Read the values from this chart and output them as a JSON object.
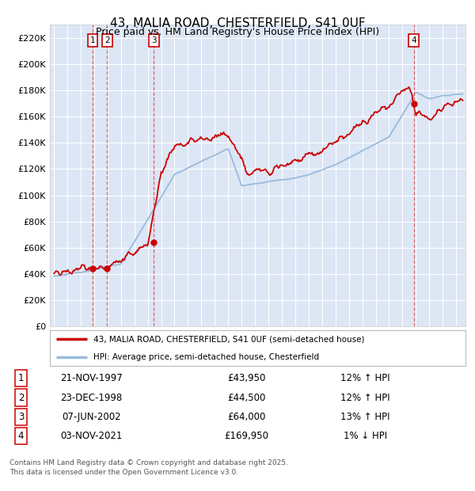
{
  "title": "43, MALIA ROAD, CHESTERFIELD, S41 0UF",
  "subtitle": "Price paid vs. HM Land Registry's House Price Index (HPI)",
  "ylim": [
    0,
    230000
  ],
  "yticks": [
    0,
    20000,
    40000,
    60000,
    80000,
    100000,
    120000,
    140000,
    160000,
    180000,
    200000,
    220000
  ],
  "ytick_labels": [
    "£0",
    "£20K",
    "£40K",
    "£60K",
    "£80K",
    "£100K",
    "£120K",
    "£140K",
    "£160K",
    "£180K",
    "£200K",
    "£220K"
  ],
  "xlim_start": 1994.7,
  "xlim_end": 2025.7,
  "bg_color": "#ffffff",
  "plot_bg_color": "#dce6f5",
  "grid_color": "#ffffff",
  "red_color": "#cc0000",
  "blue_color": "#99bbdd",
  "transactions": [
    {
      "num": 1,
      "year": 1997.89,
      "price": 43950,
      "date": "21-NOV-1997",
      "hpi_pct": "12%",
      "direction": "↑"
    },
    {
      "num": 2,
      "year": 1998.98,
      "price": 44500,
      "date": "23-DEC-1998",
      "hpi_pct": "12%",
      "direction": "↑"
    },
    {
      "num": 3,
      "year": 2002.44,
      "price": 64000,
      "date": "07-JUN-2002",
      "hpi_pct": "13%",
      "direction": "↑"
    },
    {
      "num": 4,
      "year": 2021.84,
      "price": 169950,
      "date": "03-NOV-2021",
      "hpi_pct": "1%",
      "direction": "↓"
    }
  ],
  "legend_line1": "43, MALIA ROAD, CHESTERFIELD, S41 0UF (semi-detached house)",
  "legend_line2": "HPI: Average price, semi-detached house, Chesterfield",
  "footer": "Contains HM Land Registry data © Crown copyright and database right 2025.\nThis data is licensed under the Open Government Licence v3.0."
}
